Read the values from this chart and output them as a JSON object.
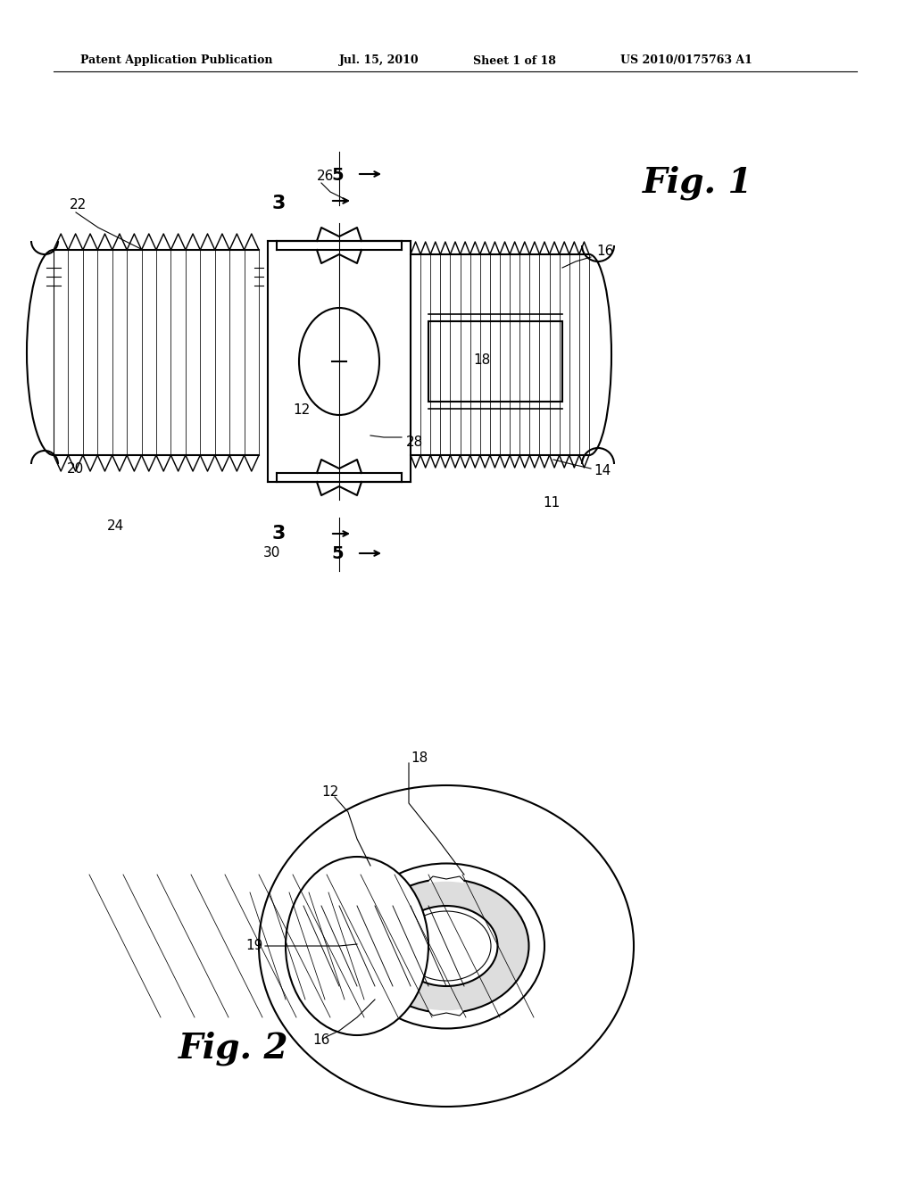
{
  "bg_color": "#ffffff",
  "header_text": "Patent Application Publication",
  "header_date": "Jul. 15, 2010",
  "header_sheet": "Sheet 1 of 18",
  "header_patent": "US 2010/0175763 A1",
  "fig1_title": "Fig. 1",
  "fig2_title": "Fig. 2",
  "line_color": "#000000",
  "line_width": 1.5,
  "thin_line": 0.8,
  "labels": {
    "3_top": "3",
    "5_top": "5",
    "26": "26",
    "22": "22",
    "16": "16",
    "18": "18",
    "12": "12",
    "28": "28",
    "20": "20",
    "14": "14",
    "11": "11",
    "24": "24",
    "3_bot": "3",
    "5_bot": "5",
    "30": "30",
    "18_fig2": "18",
    "12_fig2": "12",
    "19": "19",
    "16_fig2": "16"
  }
}
